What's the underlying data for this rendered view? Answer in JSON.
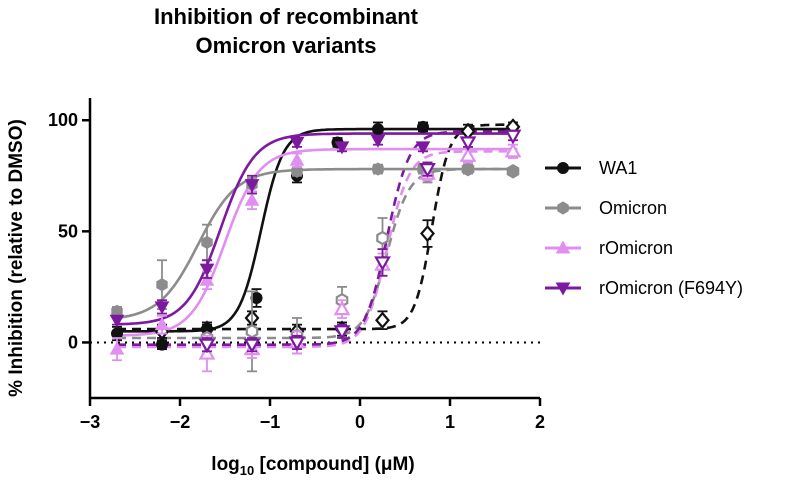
{
  "chart_data": {
    "type": "scatter",
    "title_line1": "Inhibition of recombinant",
    "title_line2": "Omicron variants",
    "xlabel_prefix": "log",
    "xlabel_sub": "10",
    "xlabel_suffix": " [compound] (μM)",
    "ylabel": "% Inhibition (relative to DMSO)",
    "xlim": [
      -3,
      2
    ],
    "ylim": [
      -25,
      110
    ],
    "xticks": [
      -3,
      -2,
      -1,
      0,
      1,
      2
    ],
    "yticks": [
      0,
      50,
      100
    ],
    "baseline": 0,
    "series": [
      {
        "name": "WA1",
        "color": "#111111",
        "marker": "circle",
        "solid": {
          "bottom": 5,
          "top": 96,
          "ec50": -1.1,
          "hill": 3.5,
          "x": [
            -2.7,
            -2.2,
            -1.7,
            -1.15,
            -0.7,
            -0.25,
            0.2,
            0.7
          ],
          "y": [
            4,
            -1,
            6,
            20,
            75,
            90,
            96,
            97
          ],
          "err": [
            3,
            2,
            2,
            4,
            3,
            2,
            3,
            2
          ]
        },
        "dashed": {
          "bottom": 6,
          "top": 98,
          "ec50": 0.8,
          "hill": 4.5,
          "x": [
            -2.2,
            -1.7,
            -1.2,
            -0.7,
            -0.2,
            0.25,
            0.75,
            1.2,
            1.7
          ],
          "y": [
            5,
            6,
            11,
            5,
            6,
            10,
            49,
            95,
            97
          ],
          "err": [
            3,
            3,
            3,
            3,
            3,
            4,
            6,
            3,
            2
          ]
        }
      },
      {
        "name": "Omicron",
        "color": "#8c8c8c",
        "marker": "hexagon",
        "solid": {
          "bottom": 10,
          "top": 78,
          "ec50": -1.8,
          "hill": 2.0,
          "x": [
            -2.7,
            -2.2,
            -1.7,
            -1.2,
            -0.7,
            0.2,
            0.7,
            1.2,
            1.7
          ],
          "y": [
            14,
            26,
            45,
            71,
            77,
            78,
            78,
            78,
            77
          ],
          "err": [
            2,
            11,
            8,
            3,
            2,
            2,
            2,
            2,
            1
          ]
        },
        "dashed": {
          "bottom": 2,
          "top": 78,
          "ec50": 0.3,
          "hill": 3.5,
          "x": [
            -1.7,
            -1.2,
            -0.7,
            -0.2,
            0.25,
            0.75,
            1.2,
            1.7
          ],
          "y": [
            2,
            5,
            3,
            19,
            47,
            75,
            78,
            77
          ],
          "err": [
            2,
            18,
            8,
            6,
            9,
            3,
            2,
            1
          ]
        }
      },
      {
        "name": "rOmicron",
        "color": "#e08ff0",
        "marker": "triangle-up",
        "solid": {
          "bottom": 3,
          "top": 87,
          "ec50": -1.5,
          "hill": 2.3,
          "x": [
            -2.7,
            -2.2,
            -1.7,
            -1.2,
            -0.7
          ],
          "y": [
            -3,
            8,
            28,
            64,
            82
          ],
          "err": [
            5,
            4,
            4,
            4,
            3
          ]
        },
        "dashed": {
          "bottom": -2,
          "top": 86,
          "ec50": 0.3,
          "hill": 3.5,
          "x": [
            -1.7,
            -1.2,
            -0.7,
            -0.2,
            0.25,
            0.75,
            1.2,
            1.7
          ],
          "y": [
            -5,
            -3,
            0,
            15,
            35,
            76,
            84,
            86
          ],
          "err": [
            8,
            4,
            5,
            4,
            5,
            3,
            3,
            3
          ]
        }
      },
      {
        "name": "rOmicron (F694Y)",
        "color": "#7b1a9e",
        "marker": "triangle-down",
        "solid": {
          "bottom": 8,
          "top": 94,
          "ec50": -1.55,
          "hill": 2.3,
          "x": [
            -2.7,
            -2.2,
            -1.7,
            -1.2,
            -0.7,
            -0.2,
            0.2,
            0.7
          ],
          "y": [
            10,
            16,
            33,
            71,
            90,
            88,
            91,
            88
          ],
          "err": [
            2,
            3,
            4,
            4,
            2,
            2,
            2,
            2
          ]
        },
        "dashed": {
          "bottom": -1,
          "top": 95,
          "ec50": 0.3,
          "hill": 3.5,
          "x": [
            -1.7,
            -1.2,
            -0.7,
            -0.2,
            0.25,
            0.75,
            1.2,
            1.7
          ],
          "y": [
            -1,
            -1,
            0,
            5,
            36,
            78,
            90,
            93
          ],
          "err": [
            3,
            3,
            3,
            3,
            6,
            3,
            2,
            2
          ]
        }
      }
    ]
  }
}
